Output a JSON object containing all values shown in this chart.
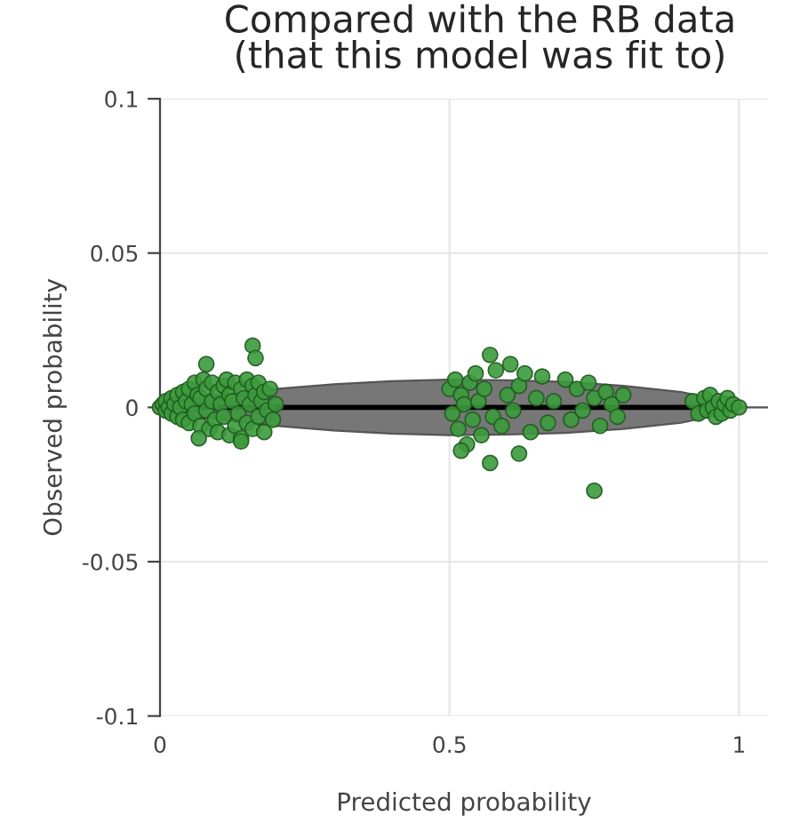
{
  "chart_data": {
    "type": "scatter",
    "title": "Compared with the RB data\n(that this model was fit to)",
    "xlabel": "Predicted probability",
    "ylabel": "Observed probability",
    "xlim": [
      0,
      1.05
    ],
    "ylim": [
      -0.1,
      0.1
    ],
    "xticks": [
      0,
      0.5,
      1
    ],
    "yticks": [
      -0.1,
      -0.05,
      0,
      0.05,
      0.1
    ],
    "grid": true,
    "legend": false,
    "ref_lines": [
      {
        "axis": "y",
        "value": 0,
        "color": "#555555"
      }
    ],
    "series": [
      {
        "type": "line",
        "marker": "none",
        "color": "#000000",
        "x": [
          0,
          0.05,
          0.1,
          0.2,
          0.3,
          0.4,
          0.5,
          0.6,
          0.7,
          0.8,
          0.9,
          0.95,
          1.0
        ],
        "values": [
          0,
          0,
          0,
          0,
          0,
          0,
          0,
          0,
          0,
          0,
          0,
          0,
          0
        ],
        "lower": [
          0,
          -0.003,
          -0.004,
          -0.006,
          -0.0075,
          -0.0085,
          -0.009,
          -0.0088,
          -0.0083,
          -0.007,
          -0.005,
          -0.003,
          0
        ],
        "upper": [
          0,
          0.003,
          0.004,
          0.006,
          0.0075,
          0.0085,
          0.009,
          0.0088,
          0.0083,
          0.007,
          0.005,
          0.003,
          0
        ]
      },
      {
        "marker": "circle",
        "color": "#3c9a3c",
        "x": [
          0,
          0.005,
          0.01,
          0.01,
          0.015,
          0.02,
          0.02,
          0.025,
          0.03,
          0.03,
          0.035,
          0.04,
          0.04,
          0.045,
          0.05,
          0.05,
          0.055,
          0.06,
          0.06,
          0.065,
          0.07,
          0.07,
          0.075,
          0.08,
          0.08,
          0.085,
          0.09,
          0.09,
          0.095,
          0.1,
          0.1,
          0.105,
          0.11,
          0.11,
          0.115,
          0.12,
          0.12,
          0.125,
          0.13,
          0.13,
          0.135,
          0.14,
          0.14,
          0.145,
          0.15,
          0.15,
          0.155,
          0.16,
          0.16,
          0.165,
          0.17,
          0.17,
          0.175,
          0.18,
          0.18,
          0.185,
          0.19,
          0.195,
          0.2,
          0.16,
          0.165,
          0.08,
          0.067,
          0.14,
          0.5,
          0.505,
          0.51,
          0.515,
          0.52,
          0.525,
          0.53,
          0.535,
          0.54,
          0.545,
          0.55,
          0.555,
          0.56,
          0.57,
          0.575,
          0.58,
          0.59,
          0.6,
          0.605,
          0.61,
          0.62,
          0.63,
          0.64,
          0.65,
          0.66,
          0.67,
          0.68,
          0.7,
          0.71,
          0.72,
          0.73,
          0.74,
          0.75,
          0.76,
          0.77,
          0.78,
          0.79,
          0.8,
          0.62,
          0.57,
          0.52,
          0.75,
          0.92,
          0.93,
          0.94,
          0.945,
          0.95,
          0.955,
          0.96,
          0.965,
          0.97,
          0.975,
          0.98,
          0.985,
          0.99,
          1.0
        ],
        "values": [
          0,
          0.001,
          -0.001,
          0.002,
          0,
          -0.002,
          0.003,
          0.001,
          -0.003,
          0.004,
          0,
          0.005,
          -0.004,
          0.002,
          -0.005,
          0.006,
          0.001,
          -0.002,
          0.008,
          0.004,
          -0.006,
          0.003,
          0.009,
          -0.001,
          0.006,
          -0.007,
          0.002,
          0.008,
          -0.004,
          0.005,
          -0.008,
          0.001,
          0.007,
          -0.003,
          0.009,
          -0.009,
          0.004,
          0.002,
          -0.006,
          0.008,
          -0.002,
          0.006,
          -0.01,
          0.003,
          0.009,
          -0.005,
          0.001,
          0.007,
          -0.007,
          0.004,
          -0.003,
          0.008,
          0.002,
          -0.008,
          0.005,
          -0.001,
          0.006,
          -0.004,
          0.001,
          0.02,
          0.016,
          0.014,
          -0.01,
          -0.011,
          0.006,
          -0.002,
          0.009,
          -0.007,
          0.004,
          0.001,
          -0.012,
          0.008,
          -0.004,
          0.011,
          0.002,
          -0.009,
          0.006,
          0.017,
          -0.003,
          0.012,
          -0.006,
          0.004,
          0.014,
          -0.001,
          0.007,
          0.011,
          -0.008,
          0.003,
          0.01,
          -0.005,
          0.002,
          0.009,
          -0.004,
          0.006,
          -0.001,
          0.008,
          0.003,
          -0.006,
          0.005,
          0.001,
          -0.003,
          0.004,
          -0.015,
          -0.018,
          -0.014,
          -0.027,
          0.002,
          -0.002,
          0.003,
          -0.001,
          0.004,
          0,
          -0.003,
          0.002,
          -0.002,
          0.001,
          0.003,
          -0.001,
          0.001,
          0
        ]
      }
    ]
  }
}
